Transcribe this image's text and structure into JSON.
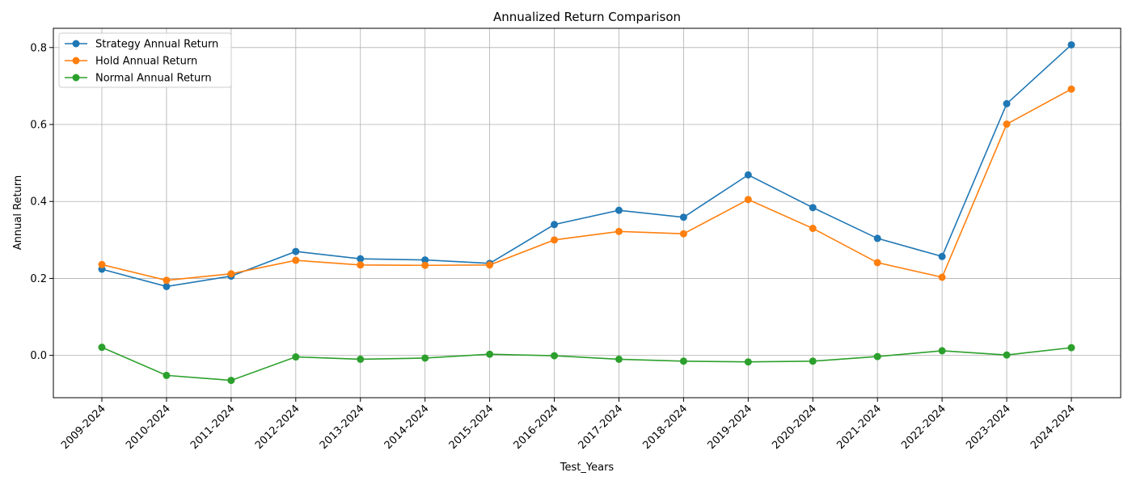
{
  "chart_data": {
    "type": "line",
    "title": "Annualized Return Comparison",
    "xlabel": "Test_Years",
    "ylabel": "Annual Return",
    "categories": [
      "2009-2024",
      "2010-2024",
      "2011-2024",
      "2012-2024",
      "2013-2024",
      "2014-2024",
      "2015-2024",
      "2016-2024",
      "2017-2024",
      "2018-2024",
      "2019-2024",
      "2020-2024",
      "2021-2024",
      "2022-2024",
      "2023-2024",
      "2024-2024"
    ],
    "ylim": [
      -0.11,
      0.85
    ],
    "yticks": [
      0.0,
      0.2,
      0.4,
      0.6,
      0.8
    ],
    "ytick_labels": [
      "0.0",
      "0.2",
      "0.4",
      "0.6",
      "0.8"
    ],
    "grid": true,
    "legend_position": "top-left",
    "series": [
      {
        "name": "Strategy Annual Return",
        "color": "#1f77b4",
        "values": [
          0.224,
          0.179,
          0.206,
          0.27,
          0.251,
          0.248,
          0.239,
          0.34,
          0.377,
          0.359,
          0.469,
          0.384,
          0.304,
          0.257,
          0.654,
          0.807
        ]
      },
      {
        "name": "Hold Annual Return",
        "color": "#ff7f0e",
        "values": [
          0.236,
          0.195,
          0.212,
          0.247,
          0.235,
          0.234,
          0.235,
          0.3,
          0.322,
          0.316,
          0.405,
          0.33,
          0.241,
          0.203,
          0.601,
          0.692
        ]
      },
      {
        "name": "Normal Annual Return",
        "color": "#2ca02c",
        "values": [
          0.021,
          -0.052,
          -0.065,
          -0.004,
          -0.01,
          -0.007,
          0.003,
          -0.001,
          -0.01,
          -0.015,
          -0.017,
          -0.015,
          -0.003,
          0.012,
          0.001,
          0.02
        ]
      }
    ]
  }
}
